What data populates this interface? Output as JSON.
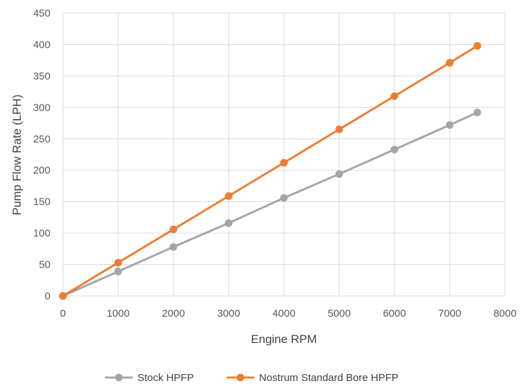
{
  "chart_data": {
    "type": "line",
    "title": "",
    "xlabel": "Engine RPM",
    "ylabel": "Pump Flow Rate (LPH)",
    "xlim": [
      0,
      8000
    ],
    "ylim": [
      0,
      450
    ],
    "x_ticks": [
      0,
      1000,
      2000,
      3000,
      4000,
      5000,
      6000,
      7000,
      8000
    ],
    "y_ticks": [
      0,
      50,
      100,
      150,
      200,
      250,
      300,
      350,
      400,
      450
    ],
    "grid": true,
    "legend_position": "bottom",
    "x": [
      0,
      1000,
      2000,
      3000,
      4000,
      5000,
      6000,
      7000,
      7500
    ],
    "series": [
      {
        "name": "Stock HPFP",
        "color": "#a5a5a5",
        "values": [
          0,
          39,
          78,
          116,
          156,
          194,
          233,
          272,
          292
        ]
      },
      {
        "name": "Nostrum Standard Bore HPFP",
        "color": "#ed7d31",
        "values": [
          0,
          53,
          106,
          159,
          212,
          265,
          318,
          371,
          398
        ]
      }
    ]
  }
}
